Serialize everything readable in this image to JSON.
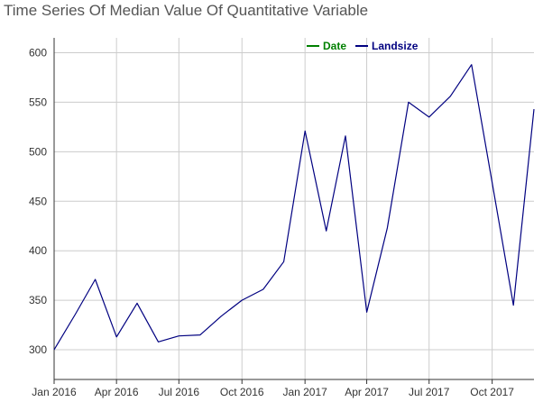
{
  "chart_data": {
    "type": "line",
    "title": "Time Series Of Median Value Of Quantitative Variable",
    "xlabel": "",
    "ylabel": "",
    "legend_position": "top-right",
    "grid": true,
    "x_ticks": [
      "Jan 2016",
      "Apr 2016",
      "Jul 2016",
      "Oct 2016",
      "Jan 2017",
      "Apr 2017",
      "Jul 2017",
      "Oct 2017"
    ],
    "x_tick_dates": [
      "2016-01-01",
      "2016-04-01",
      "2016-07-01",
      "2016-10-01",
      "2017-01-01",
      "2017-04-01",
      "2017-07-01",
      "2017-10-01"
    ],
    "x_range": [
      "2016-01-01",
      "2017-12-01"
    ],
    "y_ticks": [
      300,
      350,
      400,
      450,
      500,
      550,
      600
    ],
    "ylim": [
      270,
      615
    ],
    "series": [
      {
        "name": "Date",
        "color": "#008000",
        "x": [],
        "values": []
      },
      {
        "name": "Landsize",
        "color": "#000080",
        "x": [
          "2016-01-01",
          "2016-02-01",
          "2016-03-01",
          "2016-04-01",
          "2016-05-01",
          "2016-06-01",
          "2016-07-01",
          "2016-08-01",
          "2016-09-01",
          "2016-10-01",
          "2016-11-01",
          "2016-12-01",
          "2017-01-01",
          "2017-02-01",
          "2017-03-01",
          "2017-04-01",
          "2017-05-01",
          "2017-06-01",
          "2017-07-01",
          "2017-08-01",
          "2017-09-01",
          "2017-10-01",
          "2017-11-01",
          "2017-12-01"
        ],
        "values": [
          300,
          336,
          371,
          313,
          347,
          308,
          314,
          315,
          334,
          350,
          361,
          389,
          521,
          420,
          516,
          338,
          423,
          550,
          535,
          556,
          588,
          469,
          345,
          543
        ]
      }
    ]
  }
}
